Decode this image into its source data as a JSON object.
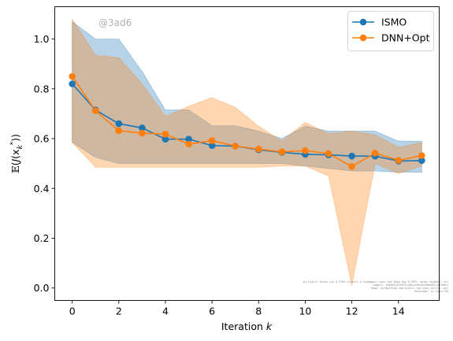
{
  "chart_data": {
    "type": "line",
    "xlabel": "Iteration k",
    "ylabel": "E(J(x_k*))",
    "xlim": [
      -0.75,
      15.75
    ],
    "ylim": [
      -0.05,
      1.13
    ],
    "xticks": [
      0,
      2,
      4,
      6,
      8,
      10,
      12,
      14
    ],
    "yticks": [
      0.0,
      0.2,
      0.4,
      0.6,
      0.8,
      1.0
    ],
    "xtick_labels": [
      "0",
      "2",
      "4",
      "6",
      "8",
      "10",
      "12",
      "14"
    ],
    "ytick_labels": [
      "0.0",
      "0.2",
      "0.4",
      "0.6",
      "0.8",
      "1.0"
    ],
    "grid": false,
    "legend_position": "top-right",
    "x": [
      0,
      1,
      2,
      3,
      4,
      5,
      6,
      7,
      8,
      9,
      10,
      11,
      12,
      13,
      14,
      15
    ],
    "series": [
      {
        "name": "ISMO",
        "color": "#1f77b4",
        "values": [
          0.82,
          0.715,
          0.66,
          0.643,
          0.598,
          0.598,
          0.572,
          0.57,
          0.555,
          0.545,
          0.537,
          0.535,
          0.53,
          0.53,
          0.51,
          0.512
        ],
        "band_upper": [
          1.07,
          1.0,
          1.0,
          0.87,
          0.715,
          0.715,
          0.652,
          0.652,
          0.63,
          0.6,
          0.65,
          0.63,
          0.63,
          0.63,
          0.59,
          0.59
        ],
        "band_lower": [
          0.585,
          0.525,
          0.5,
          0.5,
          0.5,
          0.5,
          0.5,
          0.5,
          0.5,
          0.5,
          0.49,
          0.48,
          0.47,
          0.47,
          0.465,
          0.465
        ]
      },
      {
        "name": "DNN+Opt",
        "color": "#ff7f0e",
        "values": [
          0.85,
          0.712,
          0.632,
          0.622,
          0.618,
          0.578,
          0.592,
          0.57,
          0.558,
          0.547,
          0.552,
          0.54,
          0.488,
          0.542,
          0.513,
          0.532
        ],
        "band_upper": [
          1.08,
          0.935,
          0.925,
          0.82,
          0.69,
          0.73,
          0.765,
          0.725,
          0.65,
          0.59,
          0.665,
          0.62,
          0.63,
          0.615,
          0.565,
          0.585
        ],
        "band_lower": [
          0.585,
          0.485,
          0.485,
          0.485,
          0.485,
          0.485,
          0.485,
          0.485,
          0.485,
          0.49,
          0.49,
          0.45,
          0.01,
          0.5,
          0.46,
          0.49
        ]
      }
    ],
    "watermark": "@3ad6",
    "credit_lines": [
      "-by Kjetil Olsen Lye @ ETHZ <kjetil.o.lye@gmail.com> and Deep Ray @ EPFL <deep.ray@epfl.ch>",
      "Commit: 3a6bd13519e3fca82c246c5bc98e0611d53db54",
      "Repo: git@github.com:kjetil-lye/ismo_airfoil.git",
      "Hostname: sy-login-05"
    ]
  }
}
